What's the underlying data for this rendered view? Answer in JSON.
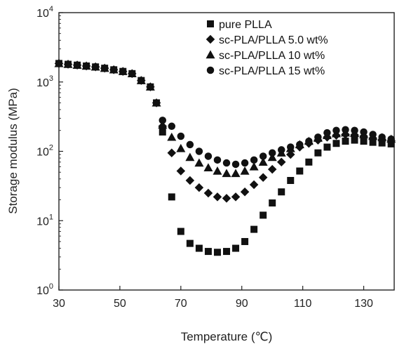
{
  "chart_data": {
    "type": "scatter",
    "xlabel": "Temperature (℃)",
    "ylabel": "Storage modulus (MPa)",
    "xlim": [
      30,
      140
    ],
    "ylim": [
      1,
      10000
    ],
    "yscale": "log",
    "xticks": [
      "30",
      "50",
      "70",
      "90",
      "110",
      "130"
    ],
    "xtick_values": [
      30,
      50,
      70,
      90,
      110,
      130
    ],
    "yticks": [
      {
        "base": "10",
        "exp": "0",
        "value": 1
      },
      {
        "base": "10",
        "exp": "1",
        "value": 10
      },
      {
        "base": "10",
        "exp": "2",
        "value": 100
      },
      {
        "base": "10",
        "exp": "3",
        "value": 1000
      },
      {
        "base": "10",
        "exp": "4",
        "value": 10000
      }
    ],
    "grid": false,
    "legend_position": "top-right",
    "series": [
      {
        "name": "pure PLLA",
        "marker": "square",
        "color": "#111111",
        "points": [
          [
            30,
            1850
          ],
          [
            33,
            1800
          ],
          [
            36,
            1750
          ],
          [
            39,
            1700
          ],
          [
            42,
            1650
          ],
          [
            45,
            1580
          ],
          [
            48,
            1500
          ],
          [
            51,
            1420
          ],
          [
            54,
            1320
          ],
          [
            57,
            1050
          ],
          [
            60,
            850
          ],
          [
            62,
            500
          ],
          [
            64,
            190
          ],
          [
            67,
            22
          ],
          [
            70,
            7
          ],
          [
            73,
            4.7
          ],
          [
            76,
            4
          ],
          [
            79,
            3.6
          ],
          [
            82,
            3.5
          ],
          [
            85,
            3.6
          ],
          [
            88,
            4
          ],
          [
            91,
            5
          ],
          [
            94,
            7.5
          ],
          [
            97,
            12
          ],
          [
            100,
            18
          ],
          [
            103,
            26
          ],
          [
            106,
            38
          ],
          [
            109,
            52
          ],
          [
            112,
            70
          ],
          [
            115,
            95
          ],
          [
            118,
            115
          ],
          [
            121,
            130
          ],
          [
            124,
            140
          ],
          [
            127,
            145
          ],
          [
            130,
            140
          ],
          [
            133,
            135
          ],
          [
            136,
            132
          ],
          [
            139,
            128
          ]
        ]
      },
      {
        "name": "sc-PLA/PLLA 5.0 wt%",
        "marker": "diamond",
        "color": "#111111",
        "points": [
          [
            30,
            1850
          ],
          [
            33,
            1800
          ],
          [
            36,
            1750
          ],
          [
            39,
            1700
          ],
          [
            42,
            1650
          ],
          [
            45,
            1580
          ],
          [
            48,
            1500
          ],
          [
            51,
            1420
          ],
          [
            54,
            1320
          ],
          [
            57,
            1050
          ],
          [
            60,
            850
          ],
          [
            62,
            500
          ],
          [
            64,
            230
          ],
          [
            67,
            95
          ],
          [
            70,
            52
          ],
          [
            73,
            38
          ],
          [
            76,
            30
          ],
          [
            79,
            25
          ],
          [
            82,
            22
          ],
          [
            85,
            21
          ],
          [
            88,
            22
          ],
          [
            91,
            26
          ],
          [
            94,
            33
          ],
          [
            97,
            42
          ],
          [
            100,
            55
          ],
          [
            103,
            70
          ],
          [
            106,
            90
          ],
          [
            109,
            115
          ],
          [
            112,
            130
          ],
          [
            115,
            145
          ],
          [
            118,
            160
          ],
          [
            121,
            170
          ],
          [
            124,
            175
          ],
          [
            127,
            172
          ],
          [
            130,
            165
          ],
          [
            133,
            155
          ],
          [
            136,
            148
          ],
          [
            139,
            142
          ]
        ]
      },
      {
        "name": "sc-PLA/PLLA 10 wt%",
        "marker": "triangle",
        "color": "#111111",
        "points": [
          [
            30,
            1850
          ],
          [
            33,
            1800
          ],
          [
            36,
            1750
          ],
          [
            39,
            1700
          ],
          [
            42,
            1650
          ],
          [
            45,
            1580
          ],
          [
            48,
            1500
          ],
          [
            51,
            1420
          ],
          [
            54,
            1320
          ],
          [
            57,
            1050
          ],
          [
            60,
            850
          ],
          [
            62,
            500
          ],
          [
            64,
            240
          ],
          [
            67,
            160
          ],
          [
            70,
            110
          ],
          [
            73,
            82
          ],
          [
            76,
            68
          ],
          [
            79,
            58
          ],
          [
            82,
            52
          ],
          [
            85,
            48
          ],
          [
            88,
            48
          ],
          [
            91,
            52
          ],
          [
            94,
            60
          ],
          [
            97,
            70
          ],
          [
            100,
            82
          ],
          [
            103,
            95
          ],
          [
            106,
            110
          ],
          [
            109,
            125
          ],
          [
            112,
            140
          ],
          [
            115,
            155
          ],
          [
            118,
            170
          ],
          [
            121,
            180
          ],
          [
            124,
            185
          ],
          [
            127,
            182
          ],
          [
            130,
            175
          ],
          [
            133,
            165
          ],
          [
            136,
            158
          ],
          [
            139,
            150
          ]
        ]
      },
      {
        "name": "sc-PLA/PLLA 15 wt%",
        "marker": "circle",
        "color": "#111111",
        "points": [
          [
            30,
            1850
          ],
          [
            33,
            1800
          ],
          [
            36,
            1750
          ],
          [
            39,
            1700
          ],
          [
            42,
            1650
          ],
          [
            45,
            1580
          ],
          [
            48,
            1500
          ],
          [
            51,
            1420
          ],
          [
            54,
            1320
          ],
          [
            57,
            1050
          ],
          [
            60,
            850
          ],
          [
            62,
            500
          ],
          [
            64,
            280
          ],
          [
            67,
            230
          ],
          [
            70,
            165
          ],
          [
            73,
            125
          ],
          [
            76,
            100
          ],
          [
            79,
            85
          ],
          [
            82,
            75
          ],
          [
            85,
            68
          ],
          [
            88,
            65
          ],
          [
            91,
            68
          ],
          [
            94,
            75
          ],
          [
            97,
            85
          ],
          [
            100,
            95
          ],
          [
            103,
            105
          ],
          [
            106,
            115
          ],
          [
            109,
            125
          ],
          [
            112,
            140
          ],
          [
            115,
            160
          ],
          [
            118,
            185
          ],
          [
            121,
            200
          ],
          [
            124,
            205
          ],
          [
            127,
            200
          ],
          [
            130,
            190
          ],
          [
            133,
            175
          ],
          [
            136,
            160
          ],
          [
            139,
            150
          ]
        ]
      }
    ]
  }
}
